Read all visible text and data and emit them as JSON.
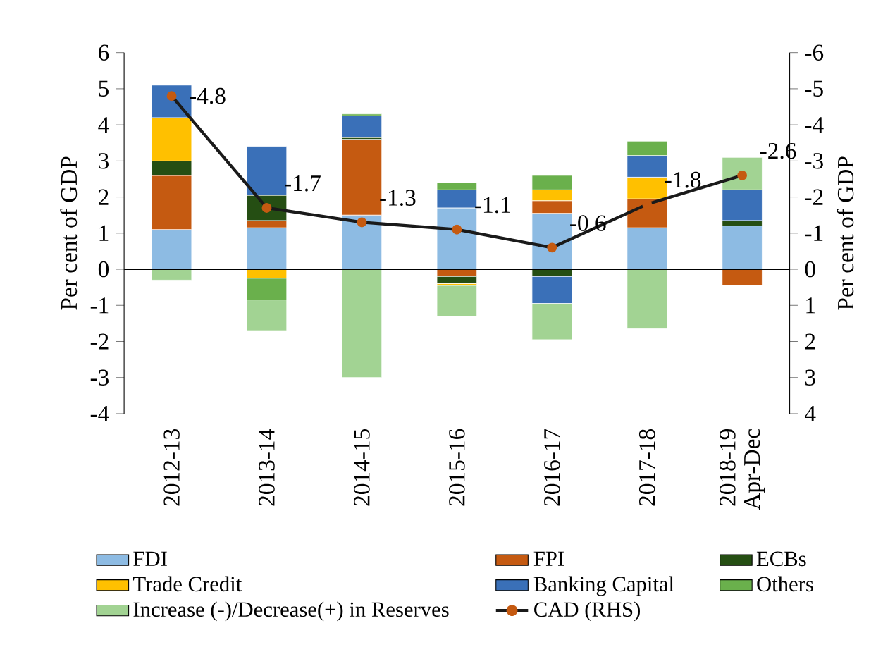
{
  "chart_data": {
    "type": "bar",
    "stacked": true,
    "categories": [
      "2012-13",
      "2013-14",
      "2014-15",
      "2015-16",
      "2016-17",
      "2017-18",
      "2018-19 Apr-Dec"
    ],
    "ylabel": "Per cent of GDP",
    "y2label": "Per cent of GDP",
    "ylim": [
      -4,
      6
    ],
    "yticks": [
      -4,
      -3,
      -2,
      -1,
      0,
      1,
      2,
      3,
      4,
      5,
      6
    ],
    "y2lim": [
      4,
      -6
    ],
    "y2ticks": [
      4,
      3,
      2,
      1,
      0,
      -1,
      -2,
      -3,
      -4,
      -5,
      -6
    ],
    "legend": "bottom",
    "grid": false,
    "ref_lines": [
      {
        "axis": "y",
        "value": 0,
        "color": "#000000"
      }
    ],
    "series": [
      {
        "name": "FDI",
        "color": "#8dbbe3",
        "values": [
          1.1,
          1.15,
          1.5,
          1.7,
          1.55,
          1.15,
          1.2
        ]
      },
      {
        "name": "FPI",
        "color": "#c55a11",
        "values": [
          1.5,
          0.2,
          2.1,
          -0.2,
          0.35,
          0.8,
          -0.45
        ]
      },
      {
        "name": "ECBs",
        "color": "#254e13",
        "values": [
          0.4,
          0.7,
          0.05,
          -0.2,
          -0.2,
          null,
          0.15
        ]
      },
      {
        "name": "Trade Credit",
        "color": "#ffc000",
        "values": [
          1.2,
          -0.25,
          null,
          -0.05,
          0.3,
          0.6,
          null
        ]
      },
      {
        "name": "Banking Capital",
        "color": "#3a70b8",
        "values": [
          0.9,
          1.35,
          0.6,
          0.5,
          -0.75,
          0.6,
          0.85
        ]
      },
      {
        "name": "Others",
        "color": "#6ab04c",
        "values": [
          null,
          -0.6,
          0.05,
          0.2,
          0.4,
          0.4,
          null
        ]
      },
      {
        "name": "Increase (-)/Decrease(+) in Reserves",
        "color": "#a2d393",
        "values": [
          -0.3,
          -0.85,
          -3.0,
          -0.85,
          -1.0,
          -1.65,
          0.9
        ]
      },
      {
        "name": "CAD (RHS)",
        "type": "line",
        "axis": "y2",
        "color": "#1a1a1a",
        "marker": "circle",
        "values": [
          -4.8,
          -1.7,
          -1.3,
          -1.1,
          -0.6,
          -1.8,
          -2.6
        ],
        "value_labels": [
          "-4.8",
          "-1.7",
          "-1.3",
          "-1.1",
          "-0.6",
          "-1.8",
          "-2.6"
        ]
      }
    ]
  }
}
